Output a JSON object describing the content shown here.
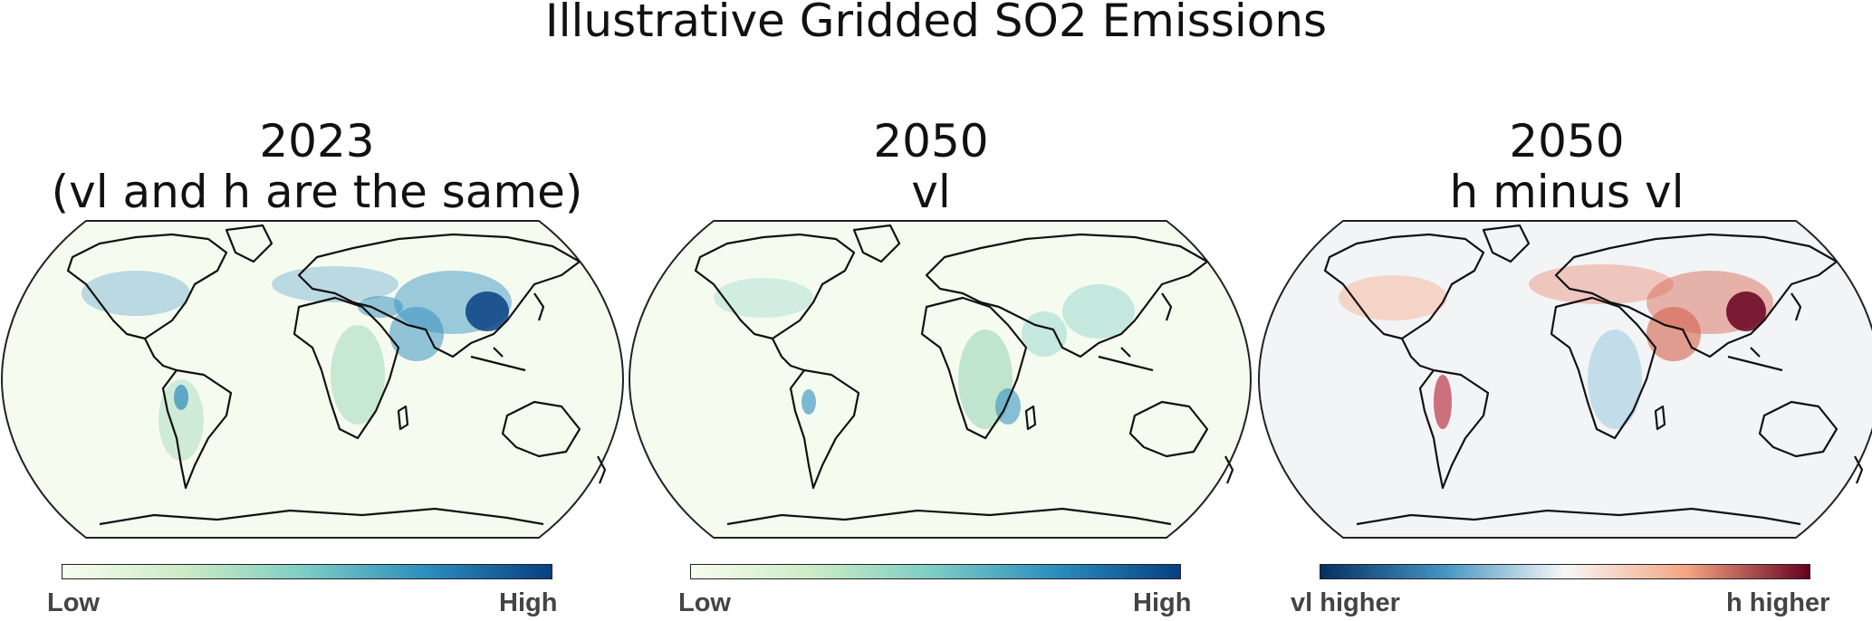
{
  "title": "Illustrative Gridded SO2 Emissions",
  "panels": [
    {
      "title_line1": "2023",
      "title_line2": "(vl and h are the same)",
      "colorbar": {
        "low": "Low",
        "high": "High",
        "colors": [
          "#f7fcf0",
          "#ccebc5",
          "#7bccc4",
          "#2b8cbe",
          "#084081"
        ]
      }
    },
    {
      "title_line1": "2050",
      "title_line2": "vl",
      "colorbar": {
        "low": "Low",
        "high": "High",
        "colors": [
          "#f7fcf0",
          "#ccebc5",
          "#7bccc4",
          "#2b8cbe",
          "#084081"
        ]
      }
    },
    {
      "title_line1": "2050",
      "title_line2": "h minus vl",
      "colorbar": {
        "low": "vl higher",
        "high": "h higher",
        "colors": [
          "#053061",
          "#4393c3",
          "#f7f7f7",
          "#f4a582",
          "#67001f"
        ]
      }
    }
  ],
  "map_background": {
    "emissions": "#f6fbf0",
    "difference": "#f3f4f5"
  }
}
